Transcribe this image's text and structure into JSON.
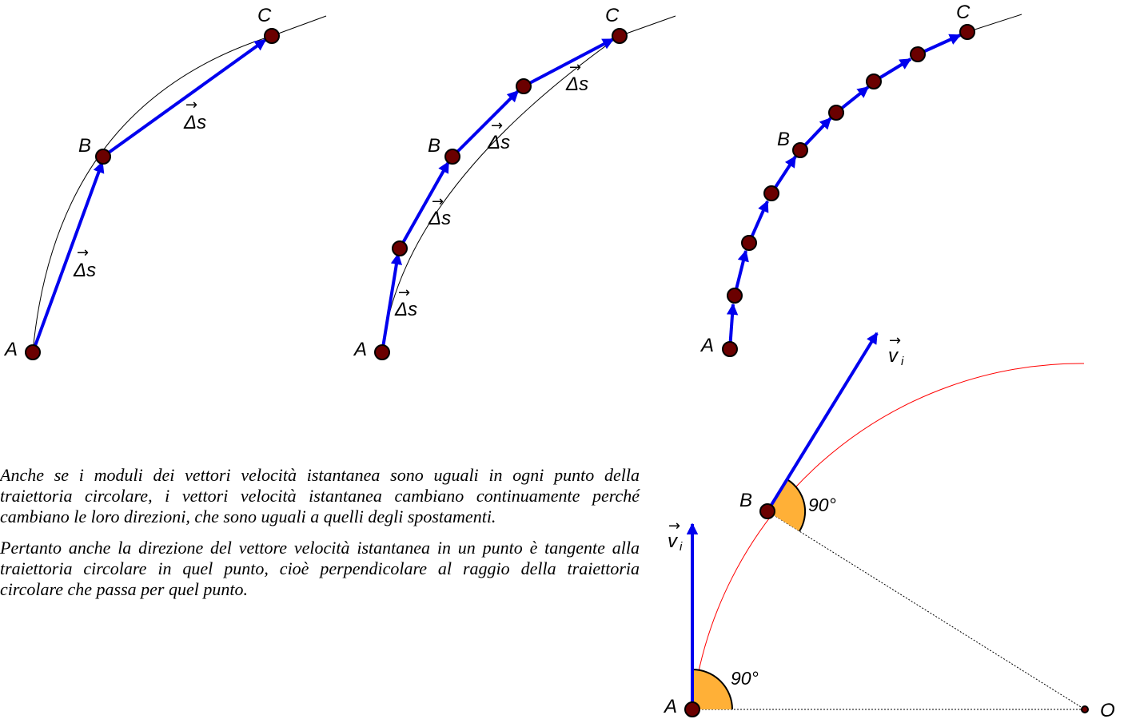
{
  "labels": {
    "A": "A",
    "B": "B",
    "C": "C",
    "O": "O",
    "delta_s": "Δs",
    "arrow": "→",
    "v": "v",
    "v_sub": "i",
    "angle": "90°"
  },
  "paragraphs": [
    "Anche se i moduli dei vettori velocità istantanea sono uguali in ogni punto della traiettoria circolare, i vettori velocità istantanea cambiano continuamente perché cambiano le loro direzioni, che sono uguali a quelli degli spostamenti.",
    "Pertanto anche la direzione del vettore velocità istantanea in un punto è tangente alla traiettoria circolare in quel punto, cioè perpendicolare al raggio della traiettoria circolare che passa per quel punto."
  ],
  "colors": {
    "vector": "#0000ee",
    "point": "#6b0000",
    "trajectory": "#ff0000",
    "angle_fill": "#ffb037"
  }
}
